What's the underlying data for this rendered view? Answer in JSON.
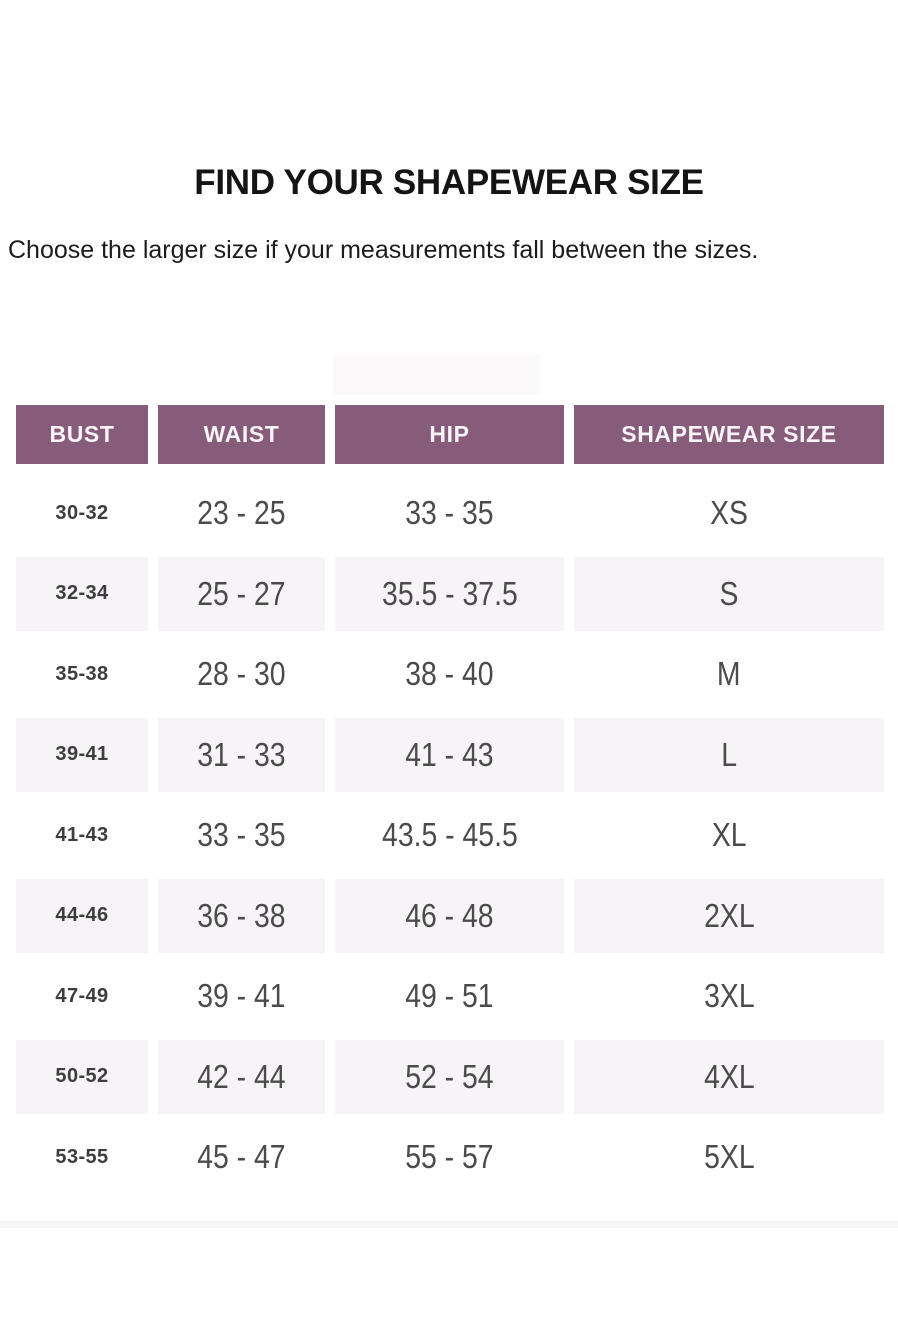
{
  "page": {
    "title": "FIND YOUR SHAPEWEAR SIZE",
    "subtitle": "Choose the larger size if your measurements fall between the sizes."
  },
  "size_chart": {
    "columns": [
      "BUST",
      "WAIST",
      "HIP",
      "SHAPEWEAR SIZE"
    ],
    "rows": [
      {
        "bust": "30-32",
        "waist": "23 - 25",
        "hip": "33 - 35",
        "size": "XS"
      },
      {
        "bust": "32-34",
        "waist": "25 - 27",
        "hip": "35.5 - 37.5",
        "size": "S"
      },
      {
        "bust": "35-38",
        "waist": "28 - 30",
        "hip": "38 - 40",
        "size": "M"
      },
      {
        "bust": "39-41",
        "waist": "31 - 33",
        "hip": "41 - 43",
        "size": "L"
      },
      {
        "bust": "41-43",
        "waist": "33 - 35",
        "hip": "43.5 - 45.5",
        "size": "XL"
      },
      {
        "bust": "44-46",
        "waist": "36 - 38",
        "hip": "46 - 48",
        "size": "2XL"
      },
      {
        "bust": "47-49",
        "waist": "39 - 41",
        "hip": "49 - 51",
        "size": "3XL"
      },
      {
        "bust": "50-52",
        "waist": "42 - 44",
        "hip": "52 - 54",
        "size": "4XL"
      },
      {
        "bust": "53-55",
        "waist": "45 - 47",
        "hip": "55 - 57",
        "size": "5XL"
      }
    ]
  },
  "colors": {
    "header_bg": "#875C7B",
    "header_text": "#F9F4F8",
    "alt_row_bg": "#F6F4F6",
    "value_text": "#4B4B4B",
    "bust_text": "#3D3D3D"
  }
}
